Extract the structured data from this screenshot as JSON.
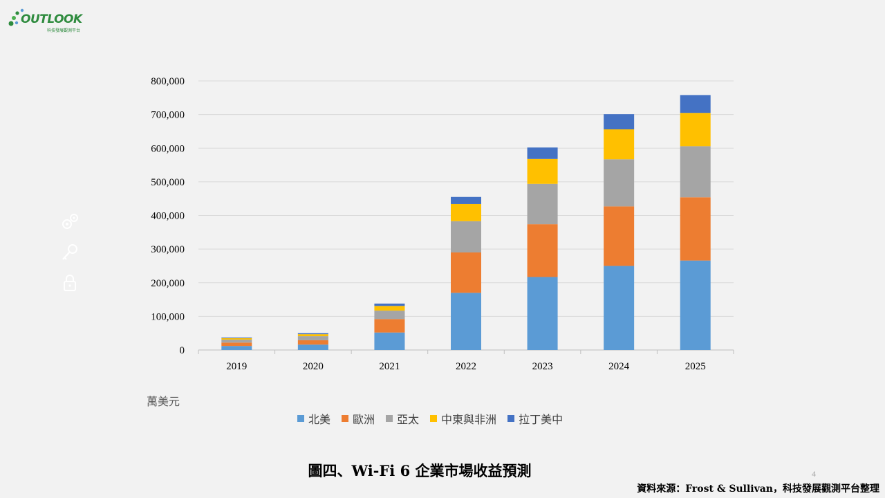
{
  "logo": {
    "text": "OUTLOOK",
    "subtitle": "科技發展觀測平台"
  },
  "chart_data": {
    "type": "bar",
    "stacked": true,
    "categories": [
      "2019",
      "2020",
      "2021",
      "2022",
      "2023",
      "2024",
      "2025"
    ],
    "series": [
      {
        "name": "北美",
        "color": "#5b9bd5",
        "values": [
          12000,
          16000,
          52000,
          170000,
          217000,
          250000,
          266000
        ]
      },
      {
        "name": "歐洲",
        "color": "#ed7d31",
        "values": [
          10000,
          13000,
          40000,
          120000,
          157000,
          177000,
          188000
        ]
      },
      {
        "name": "亞太",
        "color": "#a5a5a5",
        "values": [
          9000,
          12000,
          25000,
          93000,
          120000,
          140000,
          152000
        ]
      },
      {
        "name": "中東與非洲",
        "color": "#ffc000",
        "values": [
          4000,
          6000,
          14000,
          51000,
          74000,
          89000,
          99000
        ]
      },
      {
        "name": "拉丁美中",
        "color": "#4472c4",
        "values": [
          2000,
          3000,
          7000,
          21000,
          34000,
          45000,
          53000
        ]
      }
    ],
    "yticks": [
      "0",
      "100,000",
      "200,000",
      "300,000",
      "400,000",
      "500,000",
      "600,000",
      "700,000",
      "800,000"
    ],
    "ylim": [
      0,
      800000
    ],
    "ylabel": "萬美元",
    "gridlines": true,
    "legend_position": "bottom"
  },
  "caption": "圖四、Wi-Fi 6 企業市場收益預測",
  "page_number": "4",
  "source": "資料來源：Frost & Sullivan，科技發展觀測平台整理"
}
